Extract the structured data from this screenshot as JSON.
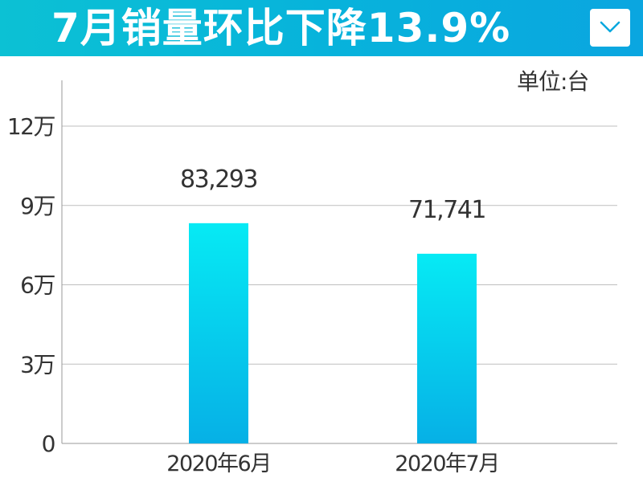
{
  "header": {
    "title": "7月销量环比下降13.9%",
    "dropdown_icon": "chevron-down-icon"
  },
  "colors": {
    "banner": "#07b3db",
    "bar_top": "#06eaf4",
    "bar_bottom": "#06b0e6",
    "gridline": "#bfbfbf"
  },
  "chart_data": {
    "type": "bar",
    "unit_label": "单位:台",
    "categories": [
      "2020年6月",
      "2020年7月"
    ],
    "values": [
      83293,
      71741
    ],
    "data_labels": [
      "83,293",
      "71,741"
    ],
    "ylim": [
      0,
      130000
    ],
    "yticks": [
      0,
      30000,
      60000,
      90000,
      120000
    ],
    "ytick_labels": [
      "0",
      "3万",
      "6万",
      "9万",
      "12万"
    ],
    "grid": true,
    "xlabel": "",
    "ylabel": ""
  }
}
